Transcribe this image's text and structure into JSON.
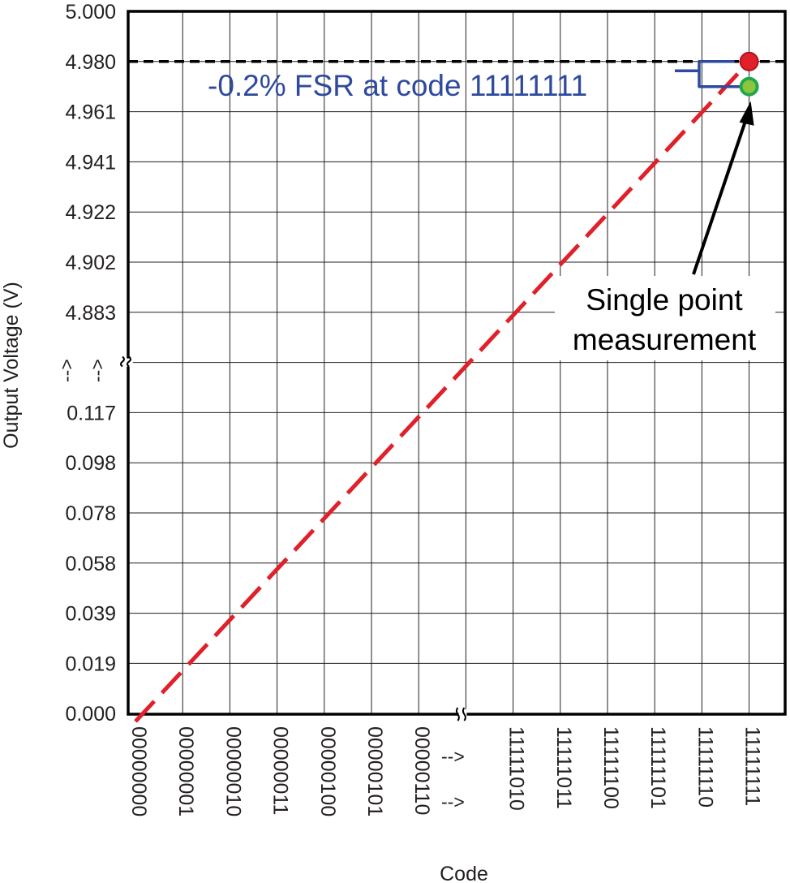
{
  "chart_data": {
    "type": "line",
    "title": "",
    "xlabel": "Code",
    "ylabel": "Output Voltage (V)",
    "grid": true,
    "x_categories": [
      "00000000",
      "00000001",
      "00000010",
      "00000011",
      "00000100",
      "00000101",
      "00000110",
      "-->",
      "11111010",
      "11111011",
      "11111100",
      "11111101",
      "11111110",
      "11111111"
    ],
    "x_arrow_label": "-->",
    "y_ticks_upper": [
      "5.000",
      "4.980",
      "4.961",
      "4.941",
      "4.922",
      "4.902",
      "4.883"
    ],
    "y_ticks_lower": [
      "0.117",
      "0.098",
      "0.078",
      "0.058",
      "0.039",
      "0.019",
      "0.000"
    ],
    "y_break_arrow": "-->",
    "series": [
      {
        "role": "ideal-transfer-line",
        "color": "#e0202a",
        "style": "dashed",
        "x": [
          "00000000",
          "11111111"
        ],
        "y": [
          0.0,
          4.98
        ]
      },
      {
        "role": "full-scale-reference",
        "color": "#000000",
        "style": "dashed",
        "y": 4.98
      }
    ],
    "points": [
      {
        "role": "ideal-endpoint",
        "x": "11111111",
        "y": 4.98,
        "color": "#e0202a"
      },
      {
        "role": "measured-point",
        "x": "11111111",
        "y": 4.97,
        "color": "#8cc63f",
        "stroke": "#22a84a"
      }
    ],
    "annotations": {
      "error_label": "-0.2% FSR at code 11111111",
      "error_label_color": "#2e4a9e",
      "measurement_label_line1": "Single point",
      "measurement_label_line2": "measurement"
    }
  }
}
